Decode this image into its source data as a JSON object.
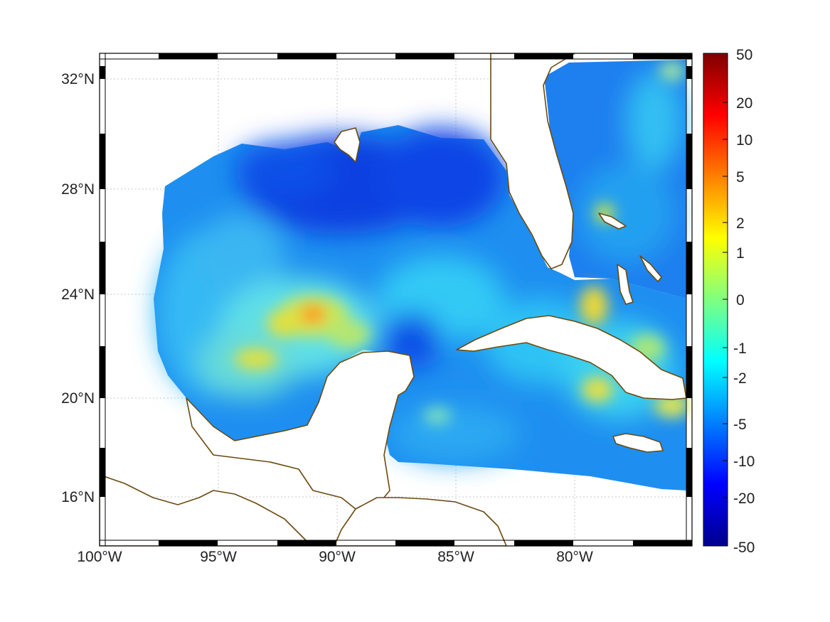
{
  "map": {
    "longitude_ticks": [
      "100°W",
      "95°W",
      "90°W",
      "85°W",
      "80°W"
    ],
    "latitude_ticks": [
      "32°N",
      "28°N",
      "24°N",
      "20°N",
      "16°N"
    ],
    "lon_range": [
      -100,
      -75
    ],
    "lat_range": [
      14.2,
      33
    ],
    "coastline_color": "#6b4a10",
    "land_color": "#ffffff"
  },
  "colorbar": {
    "tick_labels": [
      "50",
      "20",
      "10",
      "5",
      "2",
      "1",
      "0",
      "-1",
      "-2",
      "-5",
      "-10",
      "-20",
      "-50"
    ],
    "colormap": "jet"
  }
}
